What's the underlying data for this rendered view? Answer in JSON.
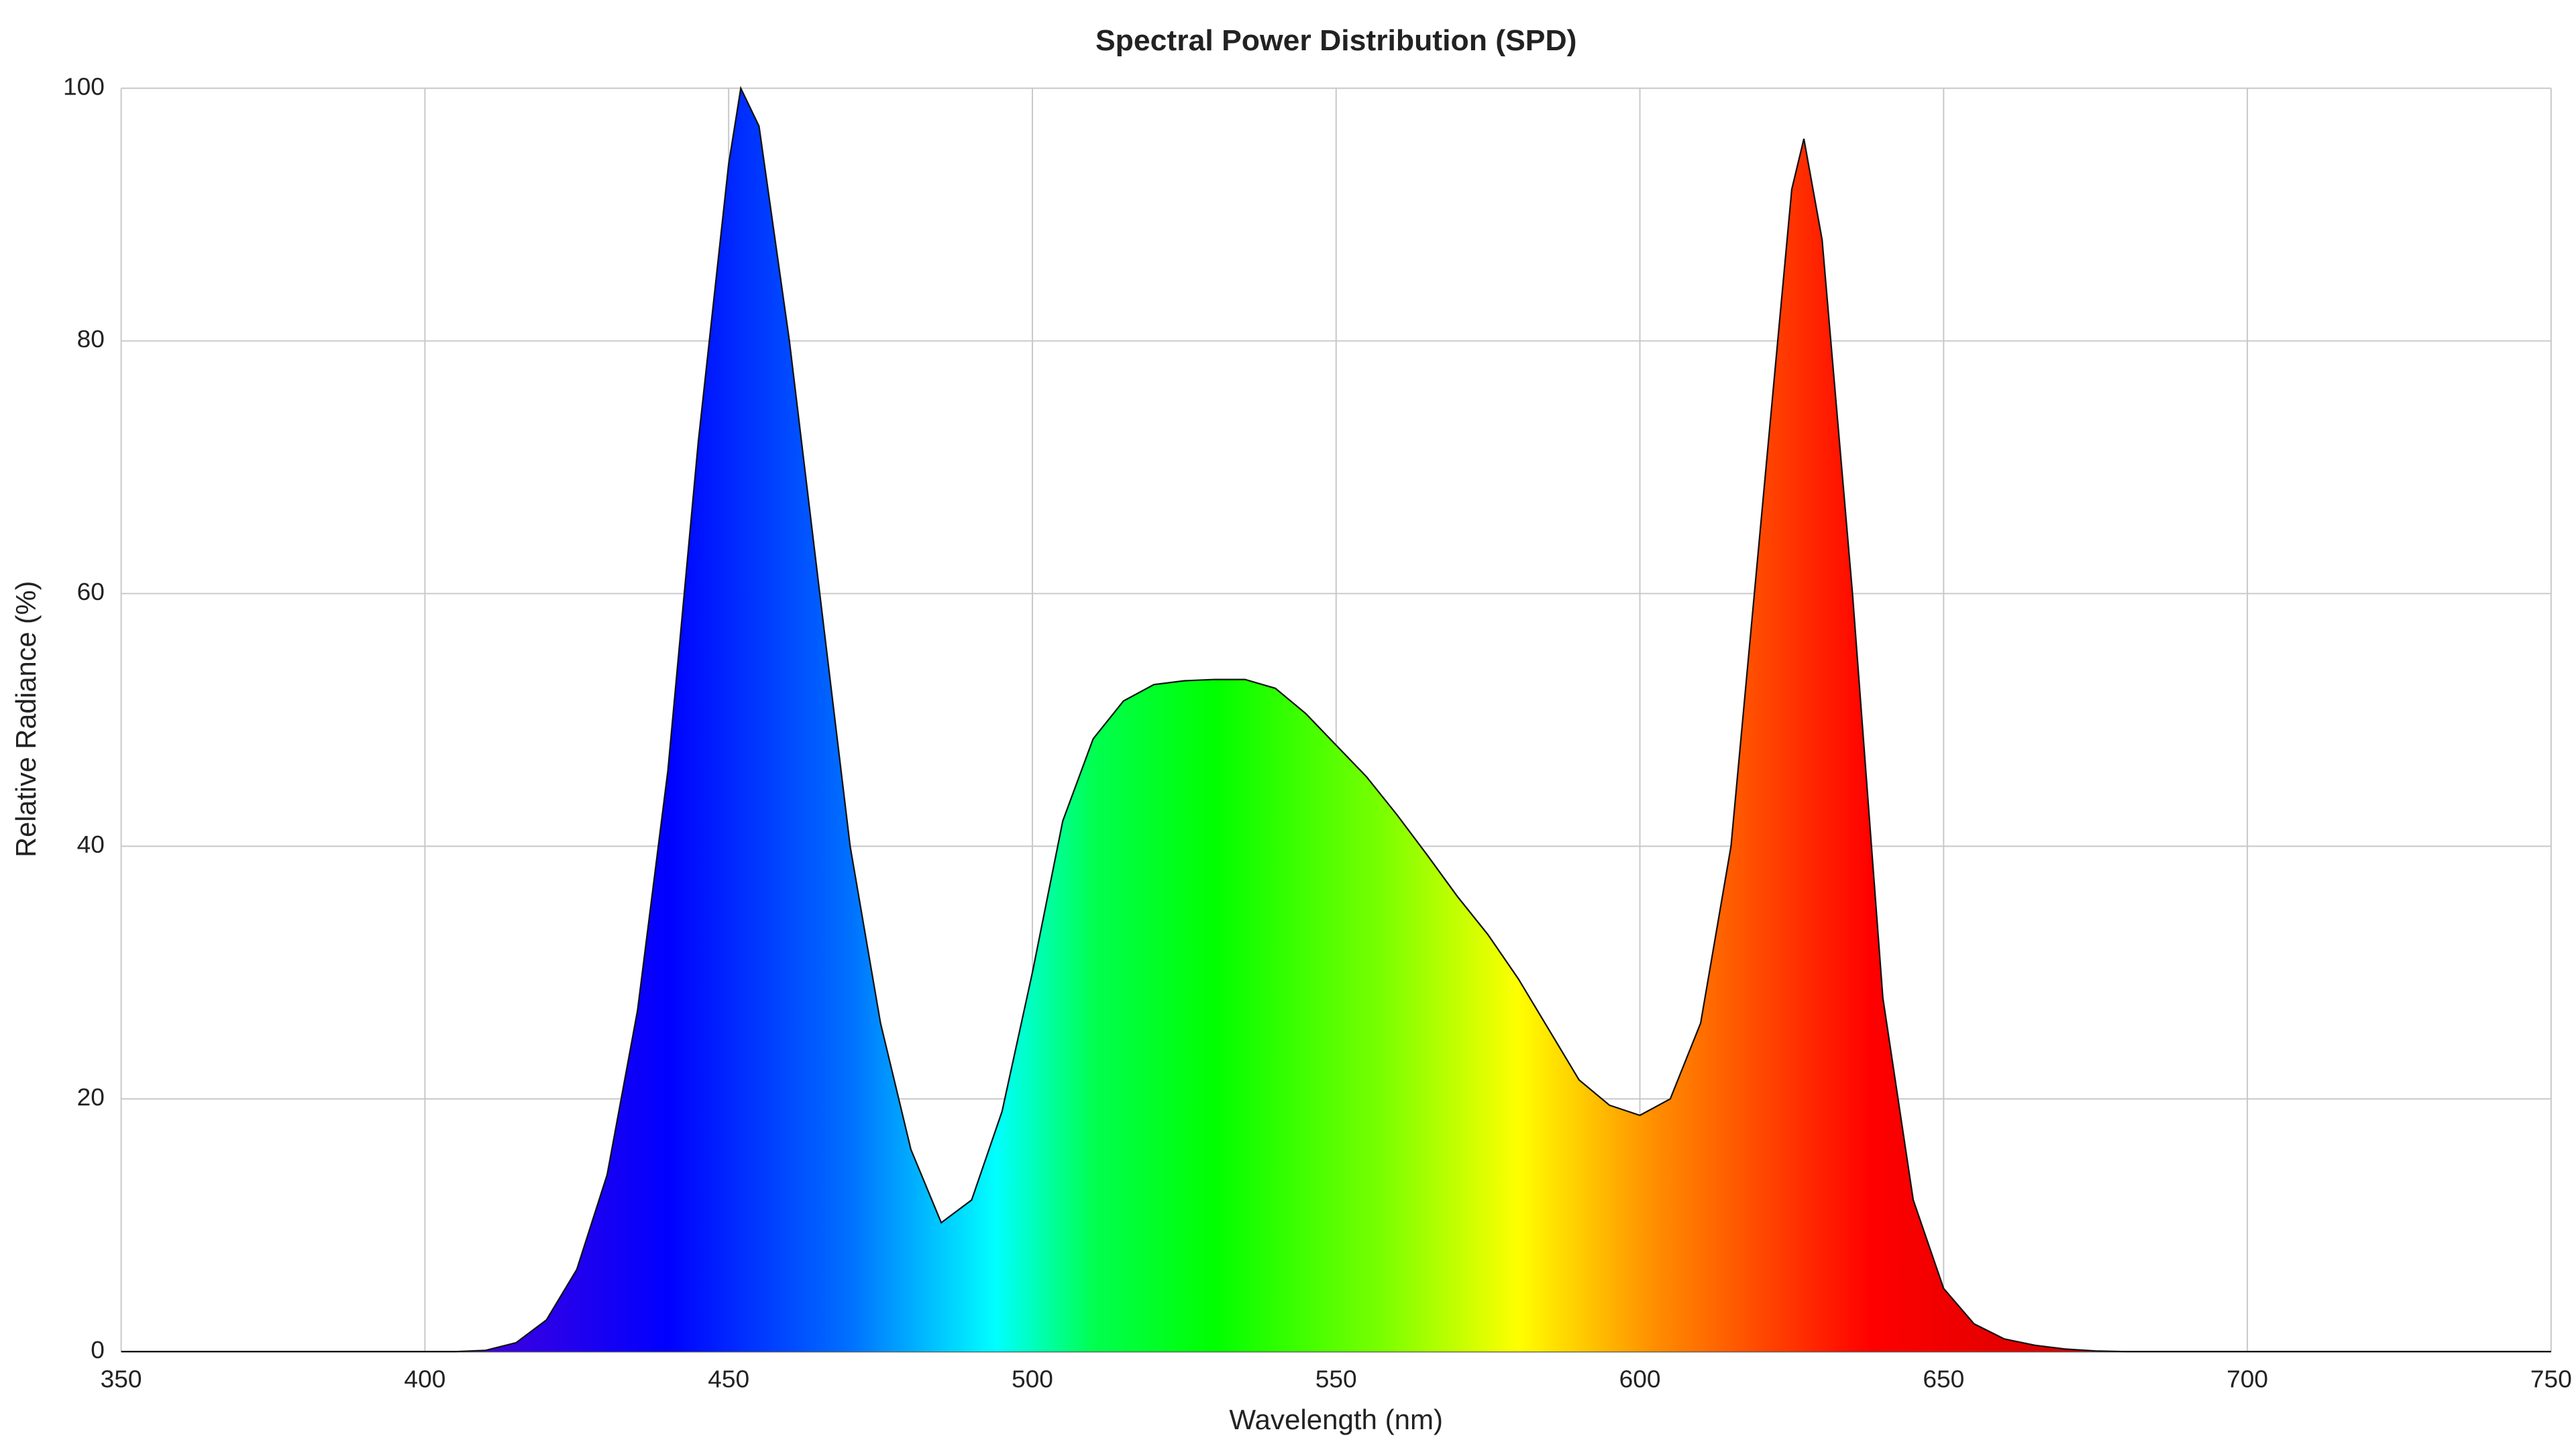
{
  "chart_data": {
    "type": "area",
    "title": "Spectral Power Distribution (SPD)",
    "xlabel": "Wavelength (nm)",
    "ylabel": "Relative Radiance (%)",
    "x": [
      350,
      355,
      360,
      365,
      370,
      375,
      380,
      385,
      390,
      395,
      400,
      405,
      410,
      415,
      420,
      425,
      430,
      435,
      440,
      445,
      450,
      452,
      455,
      460,
      465,
      470,
      475,
      480,
      485,
      490,
      495,
      500,
      505,
      510,
      515,
      520,
      525,
      530,
      535,
      540,
      545,
      550,
      555,
      560,
      565,
      570,
      575,
      580,
      585,
      590,
      595,
      600,
      605,
      610,
      615,
      620,
      625,
      627,
      630,
      635,
      640,
      645,
      650,
      655,
      660,
      665,
      670,
      675,
      680,
      685,
      690,
      695,
      700,
      705,
      710,
      715,
      720,
      725,
      730,
      735,
      740,
      745,
      750
    ],
    "values": [
      0,
      0,
      0,
      0,
      0,
      0,
      0,
      0,
      0,
      0,
      0,
      0,
      0.1,
      0.7,
      2.5,
      6.5,
      14,
      27,
      46,
      72,
      94,
      100,
      97,
      80,
      60,
      40,
      26,
      16,
      10.2,
      12,
      19,
      30,
      42,
      48.5,
      51.5,
      52.8,
      53.1,
      53.2,
      53.2,
      52.5,
      50.5,
      48,
      45.5,
      42.5,
      39.3,
      36,
      33,
      29.5,
      25.5,
      21.5,
      19.5,
      18.7,
      20,
      26,
      40,
      66,
      92,
      96,
      88,
      60,
      28,
      12,
      5,
      2.2,
      1,
      0.5,
      0.2,
      0.05,
      0,
      0,
      0,
      0,
      0,
      0,
      0,
      0,
      0,
      0,
      0,
      0,
      0,
      0,
      0
    ],
    "xlim": [
      350,
      750
    ],
    "ylim": [
      0,
      100
    ],
    "xticks": [
      350,
      400,
      450,
      500,
      550,
      600,
      650,
      700,
      750
    ],
    "yticks": [
      0,
      20,
      40,
      60,
      80,
      100
    ],
    "grid": true
  }
}
